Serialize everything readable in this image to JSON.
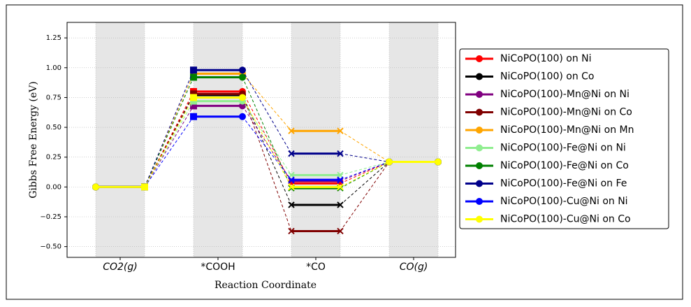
{
  "chart_data": {
    "type": "energy-diagram",
    "xlabel": "Reaction Coordinate",
    "ylabel": "Gibbs Free Energy (eV)",
    "categories": [
      "CO2(g)",
      "*COOH",
      "*CO",
      "CO(g)"
    ],
    "ylim": [
      -0.59,
      1.38
    ],
    "yticks": [
      {
        "value": -0.5,
        "label": "−0.50"
      },
      {
        "value": -0.25,
        "label": "−0.25"
      },
      {
        "value": 0,
        "label": "0.00"
      },
      {
        "value": 0.25,
        "label": "0.25"
      },
      {
        "value": 0.5,
        "label": "0.50"
      },
      {
        "value": 0.75,
        "label": "0.75"
      },
      {
        "value": 1,
        "label": "1.00"
      },
      {
        "value": 1.25,
        "label": "1.25"
      }
    ],
    "grid": true,
    "legend": "outside right",
    "series": [
      {
        "name": "NiCoPO(100) on Ni",
        "color": "#ff0000",
        "values": [
          0,
          0.8,
          0.03,
          0.21
        ]
      },
      {
        "name": "NiCoPO(100) on Co",
        "color": "#000000",
        "values": [
          0,
          0.77,
          -0.15,
          0.21
        ]
      },
      {
        "name": "NiCoPO(100)-Mn@Ni on Ni",
        "color": "#800080",
        "values": [
          0,
          0.68,
          0.05,
          0.21
        ]
      },
      {
        "name": "NiCoPO(100)-Mn@Ni on Co",
        "color": "#800000",
        "values": [
          0,
          0.78,
          -0.37,
          0.21
        ]
      },
      {
        "name": "NiCoPO(100)-Mn@Ni on Mn",
        "color": "#ffa500",
        "values": [
          0,
          0.95,
          0.47,
          0.21
        ]
      },
      {
        "name": "NiCoPO(100)-Fe@Ni on Ni",
        "color": "#90ee90",
        "values": [
          0,
          0.72,
          0.1,
          0.21
        ]
      },
      {
        "name": "NiCoPO(100)-Fe@Ni on Co",
        "color": "#008000",
        "values": [
          0,
          0.92,
          -0.01,
          0.21
        ]
      },
      {
        "name": "NiCoPO(100)-Fe@Ni on Fe",
        "color": "#00008b",
        "values": [
          0,
          0.98,
          0.28,
          0.21
        ]
      },
      {
        "name": "NiCoPO(100)-Cu@Ni on Ni",
        "color": "#0000ff",
        "values": [
          0,
          0.59,
          0.06,
          0.21
        ]
      },
      {
        "name": "NiCoPO(100)-Cu@Ni on Co",
        "color": "#ffff00",
        "values": [
          0,
          0.75,
          0.0,
          0.21
        ]
      }
    ]
  }
}
